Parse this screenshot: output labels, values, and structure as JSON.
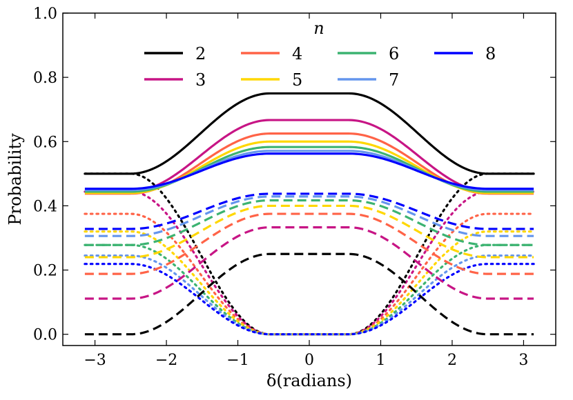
{
  "chart_data": {
    "type": "line",
    "title": "",
    "xlabel": "δ(radians)",
    "ylabel": "Probability",
    "xlim": [
      -3.45,
      3.45
    ],
    "ylim": [
      -0.035,
      1.0
    ],
    "xticks": [
      "−3",
      "−2",
      "−1",
      "0",
      "1",
      "2",
      "3"
    ],
    "xtick_values": [
      -3,
      -2,
      -1,
      0,
      1,
      2,
      3
    ],
    "yticks": [
      "0.0",
      "0.2",
      "0.4",
      "0.6",
      "0.8",
      "1.0"
    ],
    "ytick_values": [
      0.0,
      0.2,
      0.4,
      0.6,
      0.8,
      1.0
    ],
    "grid": false,
    "legend_title": "n",
    "legend_position": "top-center",
    "line_styles": [
      "solid",
      "dashed",
      "dotted"
    ],
    "model": "smooth transition over |δ|: value = edge + (center − edge) · w(|δ|), w from 1 at center to 0 near ±π",
    "series": [
      {
        "name": "2",
        "color": "#000000",
        "solid": {
          "center": 0.75,
          "edge": 0.5
        },
        "dashed": {
          "center": 0.25,
          "edge": 0.0
        },
        "dotted": {
          "center": 0.0,
          "edge": 0.5
        }
      },
      {
        "name": "3",
        "color": "#c71585",
        "solid": {
          "center": 0.667,
          "edge": 0.445
        },
        "dashed": {
          "center": 0.333,
          "edge": 0.111
        },
        "dotted": {
          "center": 0.0,
          "edge": 0.444
        }
      },
      {
        "name": "4",
        "color": "#ff6347",
        "solid": {
          "center": 0.625,
          "edge": 0.438
        },
        "dashed": {
          "center": 0.375,
          "edge": 0.188
        },
        "dotted": {
          "center": 0.0,
          "edge": 0.375
        }
      },
      {
        "name": "5",
        "color": "#ffd700",
        "solid": {
          "center": 0.6,
          "edge": 0.44
        },
        "dashed": {
          "center": 0.4,
          "edge": 0.24
        },
        "dotted": {
          "center": 0.0,
          "edge": 0.32
        }
      },
      {
        "name": "6",
        "color": "#3cb371",
        "solid": {
          "center": 0.583,
          "edge": 0.444
        },
        "dashed": {
          "center": 0.417,
          "edge": 0.278
        },
        "dotted": {
          "center": 0.0,
          "edge": 0.278
        }
      },
      {
        "name": "7",
        "color": "#6495ed",
        "solid": {
          "center": 0.571,
          "edge": 0.449
        },
        "dashed": {
          "center": 0.429,
          "edge": 0.306
        },
        "dotted": {
          "center": 0.0,
          "edge": 0.245
        }
      },
      {
        "name": "8",
        "color": "#0000ff",
        "solid": {
          "center": 0.5625,
          "edge": 0.453
        },
        "dashed": {
          "center": 0.4375,
          "edge": 0.328
        },
        "dotted": {
          "center": 0.0,
          "edge": 0.219
        }
      }
    ]
  }
}
